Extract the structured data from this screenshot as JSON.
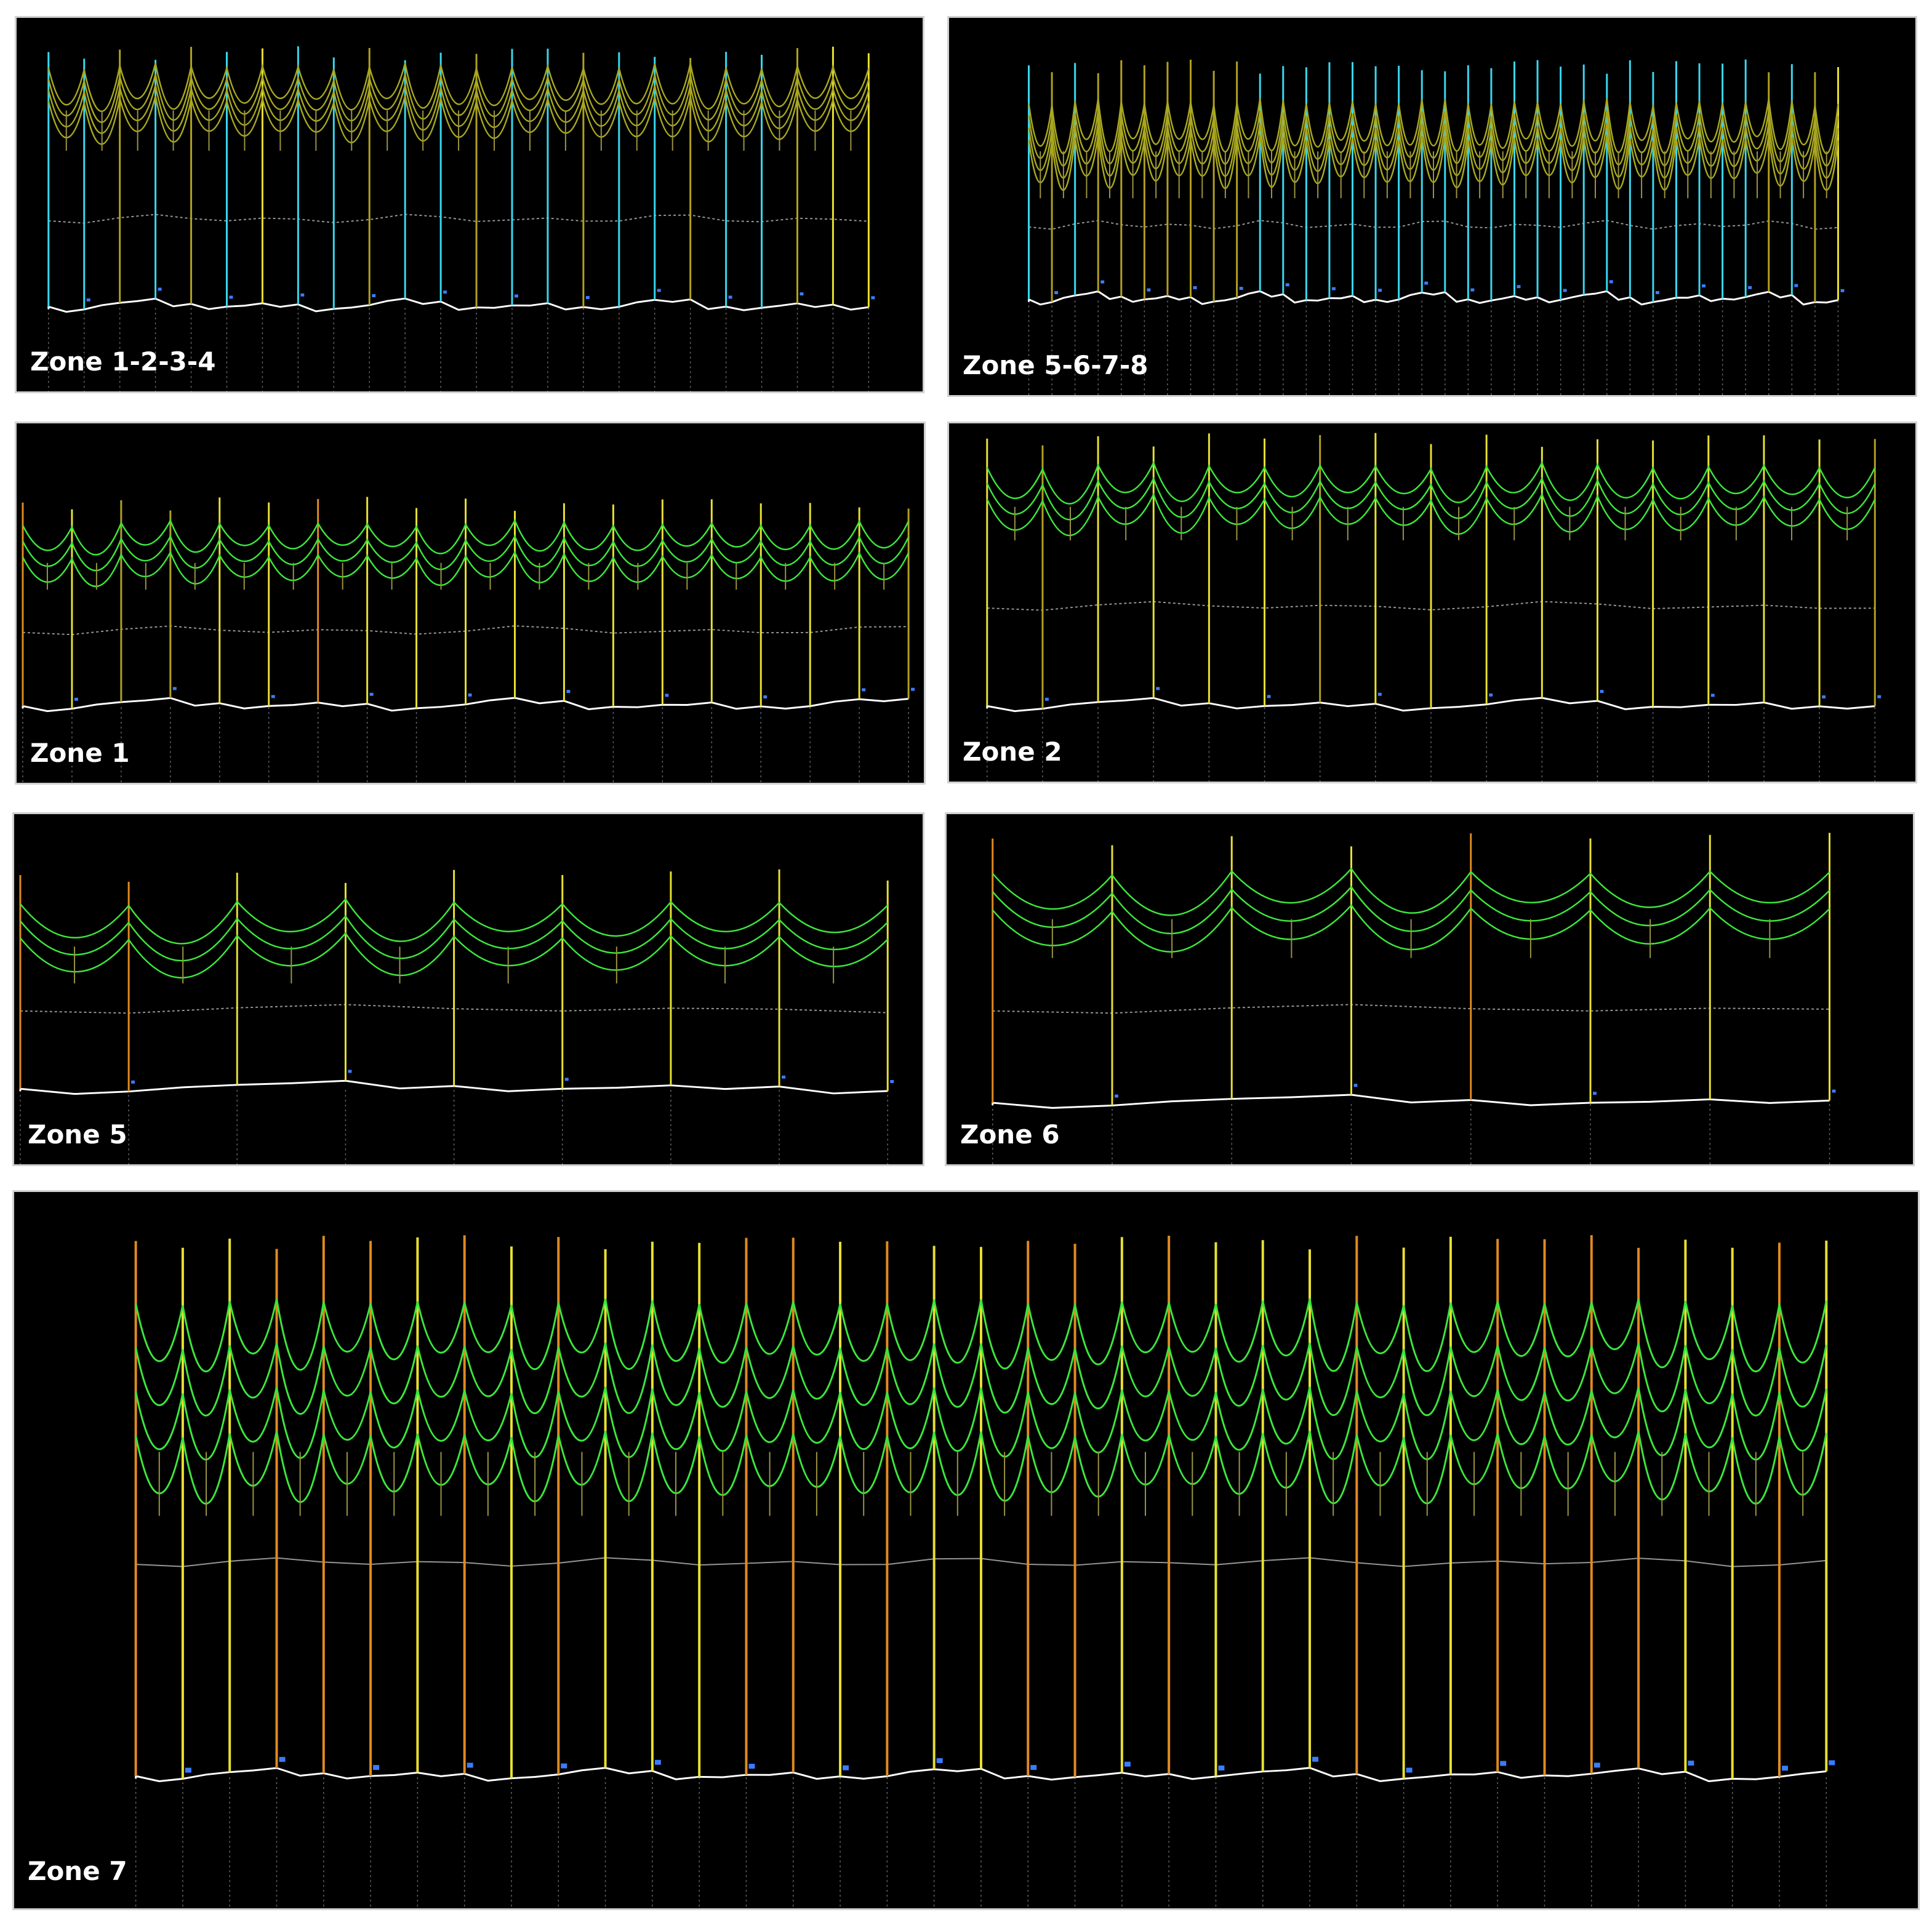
{
  "colors": {
    "background": "#000000",
    "cable": "#3ce63c",
    "cable_dark": "#a8a820",
    "pole_cyan": "#38d8f0",
    "pole_yellow": "#e8e030",
    "pole_olive": "#b0a020",
    "pole_orange": "#e08a20",
    "ground": "#ffffff",
    "clearance": "#bbbbbb",
    "marker": "#3a7cff"
  },
  "panels": [
    {
      "id": "zone-1-2-3-4",
      "label": "Zone 1-2-3-4",
      "poles": 24,
      "pole_colors": [
        "cyan",
        "cyan",
        "olive",
        "cyan",
        "olive",
        "cyan",
        "yellow",
        "cyan",
        "cyan",
        "olive",
        "cyan",
        "cyan",
        "olive",
        "cyan",
        "cyan",
        "olive",
        "cyan",
        "cyan",
        "olive",
        "cyan",
        "cyan",
        "olive",
        "yellow",
        "yellow"
      ],
      "cable_rows": 4,
      "cable_color": "olive"
    },
    {
      "id": "zone-5-6-7-8",
      "label": "Zone 5-6-7-8",
      "poles": 36,
      "pole_colors": [
        "cyan",
        "olive",
        "cyan",
        "olive",
        "olive",
        "olive",
        "olive",
        "olive",
        "olive",
        "olive",
        "cyan",
        "cyan",
        "cyan",
        "cyan",
        "cyan",
        "cyan",
        "cyan",
        "cyan",
        "cyan",
        "cyan",
        "cyan",
        "cyan",
        "cyan",
        "cyan",
        "cyan",
        "cyan",
        "cyan",
        "cyan",
        "cyan",
        "cyan",
        "cyan",
        "cyan",
        "olive",
        "cyan",
        "olive",
        "yellow"
      ],
      "cable_rows": 4,
      "cable_color": "olive"
    },
    {
      "id": "zone-1",
      "label": "Zone 1",
      "poles": 19,
      "pole_colors": [
        "orange",
        "yellow",
        "olive",
        "olive",
        "yellow",
        "yellow",
        "orange",
        "yellow",
        "yellow",
        "yellow",
        "yellow",
        "yellow",
        "yellow",
        "yellow",
        "yellow",
        "yellow",
        "yellow",
        "yellow",
        "olive"
      ],
      "cable_rows": 3,
      "cable_color": "green"
    },
    {
      "id": "zone-2",
      "label": "Zone 2",
      "poles": 17,
      "pole_colors": [
        "yellow",
        "olive",
        "yellow",
        "yellow",
        "yellow",
        "yellow",
        "olive",
        "yellow",
        "yellow",
        "yellow",
        "yellow",
        "yellow",
        "yellow",
        "yellow",
        "yellow",
        "yellow",
        "olive"
      ],
      "cable_rows": 3,
      "cable_color": "green"
    },
    {
      "id": "zone-5",
      "label": "Zone 5",
      "poles": 9,
      "pole_colors": [
        "orange",
        "orange",
        "yellow",
        "yellow",
        "yellow",
        "yellow",
        "yellow",
        "yellow",
        "yellow"
      ],
      "cable_rows": 3,
      "cable_color": "green"
    },
    {
      "id": "zone-6",
      "label": "Zone 6",
      "poles": 8,
      "pole_colors": [
        "orange",
        "yellow",
        "yellow",
        "yellow",
        "orange",
        "yellow",
        "yellow",
        "yellow"
      ],
      "cable_rows": 3,
      "cable_color": "green"
    },
    {
      "id": "zone-7",
      "label": "Zone 7",
      "poles": 37,
      "pole_colors": [
        "orange",
        "yellow",
        "yellow",
        "orange",
        "orange",
        "orange",
        "yellow",
        "orange",
        "yellow",
        "orange",
        "yellow",
        "yellow",
        "yellow",
        "orange",
        "orange",
        "yellow",
        "orange",
        "yellow",
        "yellow",
        "orange",
        "orange",
        "yellow",
        "orange",
        "yellow",
        "yellow",
        "yellow",
        "orange",
        "yellow",
        "yellow",
        "orange",
        "orange",
        "orange",
        "orange",
        "yellow",
        "yellow",
        "orange",
        "yellow"
      ],
      "cable_rows": 4,
      "cable_color": "green"
    }
  ]
}
